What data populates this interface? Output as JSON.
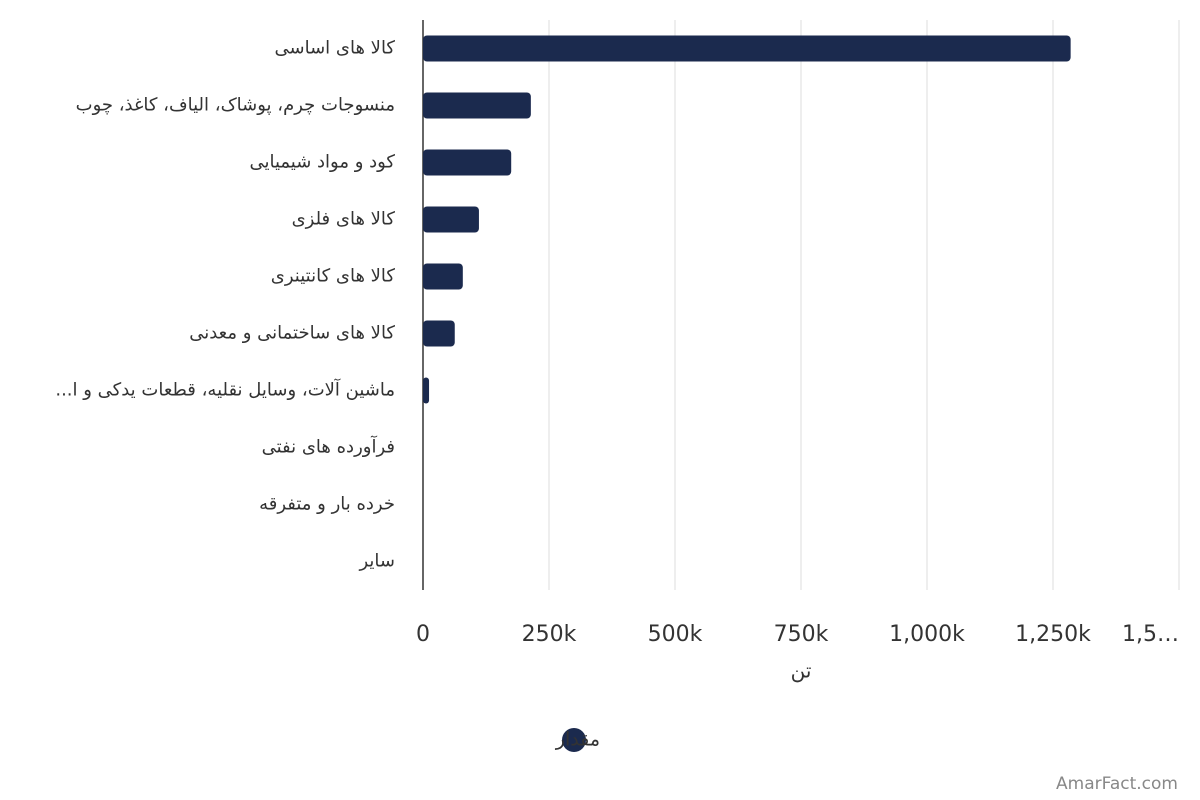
{
  "chart_data": {
    "type": "hbar",
    "categories": [
      "کالا های اساسی",
      "منسوجات چرم، پوشاک، الیاف، کاغذ، چوب",
      "کود و مواد شیمیایی",
      "کالا های فلزی",
      "کالا های کانتینری",
      "کالا های ساختمانی و معدنی",
      "ماشین آلات، وسایل نقلیه، قطعات یدکی و ا...",
      "فرآورده های نفتی",
      "خرده بار و متفرقه",
      "سایر"
    ],
    "series": [
      {
        "name": "مقدار",
        "color": "#1b2a4e",
        "values": [
          1285000,
          214000,
          175000,
          111000,
          79000,
          63000,
          12000,
          0,
          0,
          0
        ]
      }
    ],
    "xlim": [
      0,
      1500000
    ],
    "xticks": [
      0,
      {
        "value": 250000,
        "label": "250k"
      },
      {
        "value": 500000,
        "label": "500k"
      },
      {
        "value": 750000,
        "label": "750k"
      },
      {
        "value": 1000000,
        "label": "1,000k"
      },
      {
        "value": 1250000,
        "label": "1,250k"
      },
      {
        "value": 1500000,
        "label": "1,5…"
      }
    ],
    "xlabel": "تن",
    "grid": true,
    "legend": "bottom",
    "watermark": "AmarFact.com"
  }
}
